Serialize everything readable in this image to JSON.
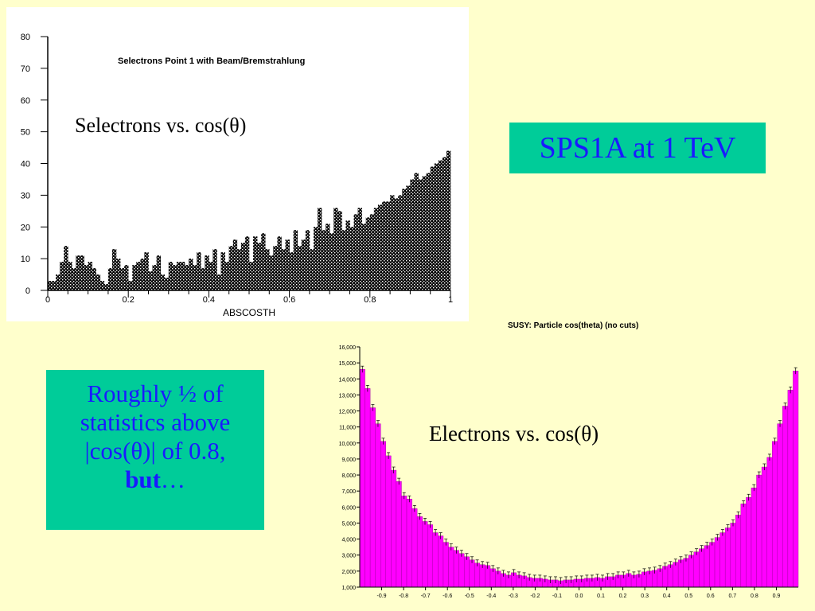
{
  "slide": {
    "top_label": "Selectrons vs. cos(θ)",
    "sps_box": "SPS1A at 1 TeV",
    "note": {
      "line1": "Roughly ½ of",
      "line2": "statistics above",
      "line3": "|cos(θ)| of 0.8,",
      "bold": "but",
      "ellipsis": "…"
    },
    "bottom_label": "Electrons vs. cos(θ)",
    "colors": {
      "background": "#ffffcc",
      "box_fill": "#00cc99",
      "box_text": "#1a1aff",
      "magenta": "#ff00ff"
    }
  },
  "chart_data": [
    {
      "type": "bar",
      "title": "Selectrons Point 1 with Beam/Bremstrahlung",
      "xlabel": "ABSCOSTH",
      "ylabel": "",
      "xlim": [
        0,
        1
      ],
      "ylim": [
        0,
        80
      ],
      "x_ticks": [
        "0",
        "0.2",
        "0.4",
        "0.6",
        "0.8",
        "1"
      ],
      "y_ticks": [
        "0",
        "10",
        "20",
        "30",
        "40",
        "50",
        "60",
        "70",
        "80"
      ],
      "bin_width": 0.01,
      "values": [
        3,
        3,
        5,
        9,
        14,
        9,
        7,
        11,
        11,
        8,
        9,
        7,
        5,
        3,
        2,
        7,
        13,
        10,
        7,
        8,
        3,
        8,
        9,
        10,
        12,
        6,
        8,
        11,
        5,
        4,
        9,
        8,
        9,
        9,
        8,
        10,
        8,
        12,
        7,
        11,
        9,
        13,
        5,
        12,
        9,
        14,
        16,
        13,
        15,
        17,
        9,
        17,
        15,
        18,
        13,
        11,
        14,
        17,
        13,
        16,
        12,
        19,
        14,
        16,
        19,
        13,
        20,
        26,
        19,
        21,
        18,
        26,
        25,
        19,
        22,
        20,
        24,
        26,
        21,
        23,
        24,
        26,
        27,
        28,
        28,
        30,
        29,
        30,
        32,
        33,
        35,
        37,
        35,
        36,
        37,
        39,
        40,
        41,
        42,
        44
      ],
      "grid": false
    },
    {
      "type": "bar",
      "title": "SUSY: Particle cos(theta) (no cuts)",
      "xlabel": "",
      "ylabel": "",
      "xlim": [
        -1,
        1
      ],
      "ylim": [
        1000,
        16000
      ],
      "x_ticks": [
        "-0.9",
        "-0.8",
        "-0.7",
        "-0.6",
        "-0.5",
        "-0.4",
        "-0.3",
        "-0.2",
        "-0.1",
        "0.0",
        "0.1",
        "0.2",
        "0.3",
        "0.4",
        "0.5",
        "0.6",
        "0.7",
        "0.8",
        "0.9"
      ],
      "y_ticks": [
        "1,000",
        "2,000",
        "3,000",
        "4,000",
        "5,000",
        "6,000",
        "7,000",
        "8,000",
        "9,000",
        "10,000",
        "11,000",
        "12,000",
        "13,000",
        "14,000",
        "15,000",
        "16,000"
      ],
      "bin_width": 0.02,
      "values": [
        14600,
        13400,
        12200,
        11200,
        10100,
        9200,
        8300,
        7600,
        6700,
        6500,
        5900,
        5400,
        5100,
        4900,
        4400,
        4200,
        3800,
        3500,
        3300,
        3100,
        2900,
        2700,
        2500,
        2400,
        2350,
        2150,
        2000,
        1850,
        1750,
        1900,
        1750,
        1700,
        1600,
        1550,
        1550,
        1500,
        1450,
        1450,
        1400,
        1450,
        1450,
        1500,
        1500,
        1550,
        1550,
        1600,
        1550,
        1650,
        1650,
        1750,
        1750,
        1850,
        1750,
        1800,
        1950,
        2000,
        2050,
        2150,
        2300,
        2400,
        2550,
        2700,
        2800,
        3000,
        3200,
        3400,
        3600,
        3800,
        4100,
        4400,
        4700,
        5000,
        5500,
        6200,
        6600,
        7200,
        8000,
        8500,
        9100,
        10100,
        11200,
        12300,
        13300,
        14500
      ],
      "grid": false
    }
  ]
}
